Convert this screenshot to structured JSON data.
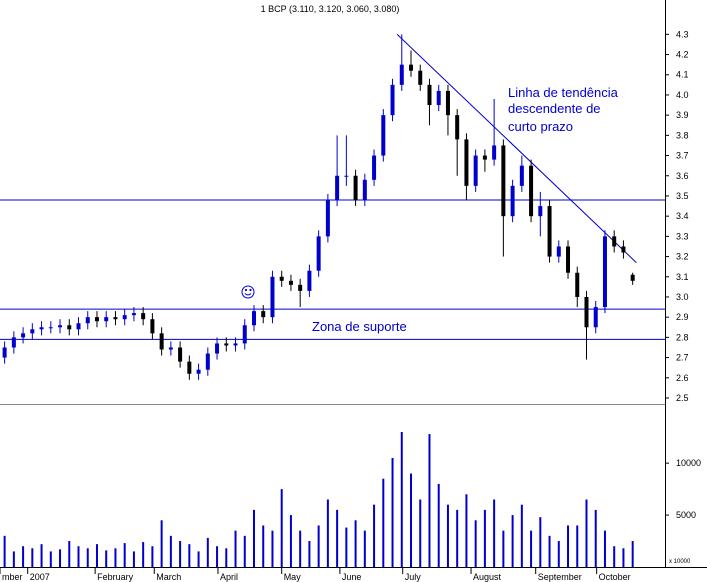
{
  "chart_data": {
    "type": "candlestick",
    "title": "1 BCP (3.110, 3.120, 3.060, 3.080)",
    "x": [
      0,
      1,
      2,
      3,
      4,
      5,
      6,
      7,
      8,
      9,
      10,
      11,
      12,
      13,
      14,
      15,
      16,
      17,
      18,
      19,
      20,
      21,
      22,
      23,
      24,
      25,
      26,
      27,
      28,
      29,
      30,
      31,
      32,
      33,
      34,
      35,
      36,
      37,
      38,
      39,
      40,
      41,
      42,
      43,
      44,
      45,
      46,
      47,
      48,
      49,
      50,
      51,
      52,
      53,
      54,
      55,
      56,
      57,
      58,
      59,
      60,
      61,
      62,
      63,
      64,
      65,
      66,
      67,
      68
    ],
    "open": [
      2.7,
      2.75,
      2.8,
      2.82,
      2.84,
      2.85,
      2.85,
      2.86,
      2.84,
      2.87,
      2.9,
      2.88,
      2.9,
      2.89,
      2.91,
      2.92,
      2.89,
      2.82,
      2.74,
      2.75,
      2.68,
      2.62,
      2.64,
      2.72,
      2.77,
      2.76,
      2.77,
      2.86,
      2.93,
      2.9,
      3.1,
      3.08,
      3.06,
      3.03,
      3.13,
      3.3,
      3.48,
      3.6,
      3.6,
      3.48,
      3.58,
      3.7,
      3.9,
      4.05,
      4.15,
      4.12,
      4.05,
      3.95,
      4.02,
      3.9,
      3.78,
      3.55,
      3.7,
      3.68,
      3.75,
      3.4,
      3.55,
      3.65,
      3.4,
      3.45,
      3.2,
      3.25,
      3.12,
      3.0,
      2.85,
      2.95,
      3.3,
      3.25,
      3.11
    ],
    "high": [
      2.78,
      2.83,
      2.85,
      2.87,
      2.88,
      2.88,
      2.89,
      2.89,
      2.9,
      2.93,
      2.93,
      2.93,
      2.93,
      2.94,
      2.95,
      2.95,
      2.92,
      2.85,
      2.78,
      2.78,
      2.71,
      2.67,
      2.75,
      2.8,
      2.8,
      2.8,
      2.89,
      2.96,
      2.96,
      3.13,
      3.13,
      3.11,
      3.09,
      3.16,
      3.33,
      3.51,
      3.8,
      3.8,
      3.63,
      3.61,
      3.73,
      3.93,
      4.08,
      4.3,
      4.22,
      4.15,
      4.08,
      4.05,
      4.05,
      3.93,
      3.81,
      3.73,
      3.73,
      3.98,
      3.78,
      3.58,
      3.7,
      3.68,
      3.52,
      3.48,
      3.28,
      3.28,
      3.15,
      3.03,
      2.98,
      3.33,
      3.33,
      3.28,
      3.12
    ],
    "low": [
      2.67,
      2.72,
      2.77,
      2.79,
      2.81,
      2.82,
      2.82,
      2.81,
      2.81,
      2.84,
      2.85,
      2.85,
      2.86,
      2.86,
      2.88,
      2.86,
      2.79,
      2.71,
      2.71,
      2.65,
      2.59,
      2.59,
      2.61,
      2.69,
      2.73,
      2.73,
      2.74,
      2.83,
      2.87,
      2.87,
      3.05,
      3.03,
      2.95,
      3.0,
      3.1,
      3.27,
      3.45,
      3.55,
      3.45,
      3.45,
      3.55,
      3.67,
      3.87,
      4.02,
      4.09,
      4.02,
      3.85,
      3.92,
      3.8,
      3.6,
      3.48,
      3.52,
      3.62,
      3.65,
      3.2,
      3.37,
      3.52,
      3.37,
      3.3,
      3.17,
      3.17,
      3.09,
      2.95,
      2.69,
      2.82,
      2.92,
      3.22,
      3.19,
      3.06
    ],
    "close": [
      2.75,
      2.8,
      2.82,
      2.84,
      2.85,
      2.85,
      2.86,
      2.84,
      2.87,
      2.9,
      2.88,
      2.9,
      2.89,
      2.91,
      2.92,
      2.89,
      2.82,
      2.74,
      2.75,
      2.68,
      2.62,
      2.64,
      2.72,
      2.77,
      2.76,
      2.77,
      2.86,
      2.93,
      2.9,
      3.1,
      3.08,
      3.06,
      3.03,
      3.13,
      3.3,
      3.48,
      3.6,
      3.6,
      3.48,
      3.58,
      3.7,
      3.9,
      4.05,
      4.15,
      4.12,
      4.05,
      3.95,
      4.02,
      3.9,
      3.78,
      3.55,
      3.7,
      3.68,
      3.75,
      3.4,
      3.55,
      3.65,
      3.4,
      3.45,
      3.2,
      3.25,
      3.12,
      3.0,
      2.85,
      2.95,
      3.3,
      3.25,
      3.22,
      3.08
    ],
    "volume": [
      3000,
      1500,
      2000,
      1800,
      2200,
      1500,
      1700,
      2500,
      2000,
      1800,
      2200,
      1600,
      1800,
      2300,
      1500,
      2400,
      2000,
      4500,
      3000,
      2500,
      2200,
      1500,
      2800,
      2000,
      1800,
      3500,
      3000,
      5500,
      4000,
      3500,
      7500,
      5000,
      3500,
      2500,
      4000,
      6500,
      5500,
      3800,
      4500,
      3500,
      6000,
      8500,
      10500,
      13000,
      9000,
      6500,
      12800,
      8000,
      6000,
      5500,
      7000,
      4500,
      5500,
      6500,
      3500,
      5000,
      6000,
      3500,
      4800,
      3000,
      2500,
      4000,
      4000,
      6500,
      5500,
      3500,
      2000,
      1800,
      2500
    ],
    "up_color": "#0000cc",
    "down_color": "#000000",
    "line_color": "#0000cc",
    "xlim": [
      -0.5,
      71.5
    ],
    "xticks": [
      {
        "value": -0.5,
        "label": "mber"
      },
      {
        "value": 2.5,
        "label": "2007"
      },
      {
        "value": 9.8,
        "label": "February"
      },
      {
        "value": 16.2,
        "label": "March"
      },
      {
        "value": 23.1,
        "label": "April"
      },
      {
        "value": 30.0,
        "label": "May"
      },
      {
        "value": 36.3,
        "label": "June"
      },
      {
        "value": 43.1,
        "label": "July"
      },
      {
        "value": 50.5,
        "label": "August"
      },
      {
        "value": 57.5,
        "label": "September"
      },
      {
        "value": 64.1,
        "label": "October"
      }
    ],
    "ylim": [
      2.49,
      4.47
    ],
    "yticks": [
      2.5,
      2.6,
      2.7,
      2.8,
      2.9,
      {
        "value": 3,
        "label": "3.0"
      },
      3.1,
      3.2,
      3.3,
      3.4,
      3.5,
      3.6,
      3.7,
      3.8,
      3.9,
      {
        "value": 4,
        "label": "4.0"
      },
      4.1,
      4.2,
      4.3
    ],
    "y2lim": [
      0,
      15600
    ],
    "y2ticks": [
      5000,
      10000
    ],
    "volume_unit": "x 10000",
    "support_lines": [
      3.48,
      2.94,
      2.79
    ],
    "trendline": {
      "x": [
        42.5,
        68.4
      ],
      "y": [
        4.3,
        3.17
      ]
    },
    "annotations": [
      "Linha de tendência",
      "descendente de",
      "curto prazo",
      "Zona de suporte"
    ]
  }
}
